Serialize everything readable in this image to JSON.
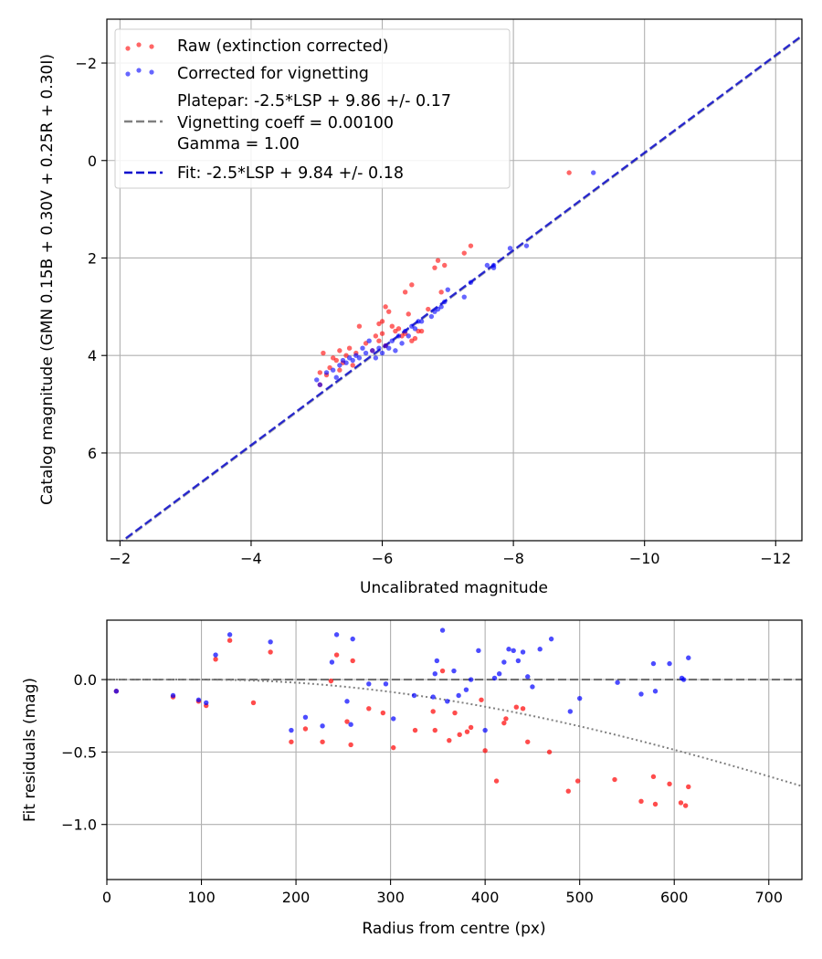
{
  "chart_data": [
    {
      "type": "scatter",
      "title": "",
      "xlabel": "Uncalibrated magnitude",
      "ylabel": "Catalog magnitude (GMN 0.15B + 0.30V + 0.25R + 0.30I)",
      "xlim": [
        -1.8,
        -12.4
      ],
      "ylim": [
        7.8,
        -2.9
      ],
      "grid": true,
      "legend_position": "top-left",
      "xticks": [
        -2,
        -4,
        -6,
        -8,
        -10,
        -12
      ],
      "xtick_labels": [
        "−2",
        "−4",
        "−6",
        "−8",
        "−10",
        "−12"
      ],
      "yticks": [
        -2,
        0,
        2,
        4,
        6
      ],
      "ytick_labels": [
        "−2",
        "0",
        "2",
        "4",
        "6"
      ],
      "legend": [
        "Raw (extinction corrected)",
        "Corrected for vignetting",
        [
          "Platepar: -2.5*LSP + 9.86 +/- 0.17",
          "Vignetting coeff = 0.00100",
          "Gamma = 1.00"
        ],
        "Fit: -2.5*LSP + 9.84 +/- 0.18"
      ],
      "series": [
        {
          "name": "Raw (extinction corrected)",
          "color": "#ff0000",
          "x": [
            -8.85,
            -7.35,
            -7.25,
            -6.95,
            -6.85,
            -6.8,
            -6.45,
            -6.9,
            -6.35,
            -6.05,
            -6.1,
            -6.0,
            -5.95,
            -6.15,
            -6.25,
            -6.55,
            -6.6,
            -6.3,
            -6.45,
            -5.65,
            -5.35,
            -5.5,
            -5.75,
            -5.6,
            -5.25,
            -5.1,
            -5.2,
            -5.05,
            -5.4,
            -5.9,
            -6.0,
            -6.2,
            -5.3,
            -5.45,
            -5.85,
            -6.35,
            -6.5,
            -6.05,
            -5.95,
            -5.55,
            -5.15,
            -5.05,
            -5.35,
            -6.7,
            -6.4
          ],
          "y": [
            0.25,
            1.75,
            1.9,
            2.15,
            2.05,
            2.2,
            2.55,
            2.7,
            2.7,
            3.0,
            3.1,
            3.3,
            3.35,
            3.4,
            3.45,
            3.5,
            3.5,
            3.6,
            3.7,
            3.4,
            3.9,
            3.85,
            3.75,
            3.95,
            4.05,
            3.95,
            4.25,
            4.35,
            4.15,
            3.6,
            3.55,
            3.5,
            4.1,
            4.0,
            3.9,
            3.55,
            3.65,
            3.8,
            3.7,
            4.2,
            4.4,
            4.6,
            4.3,
            3.05,
            3.15
          ]
        },
        {
          "name": "Corrected for vignetting",
          "color": "#0000ff",
          "x": [
            -9.22,
            -8.2,
            -7.95,
            -7.7,
            -7.7,
            -7.25,
            -7.0,
            -6.95,
            -6.85,
            -6.8,
            -6.6,
            -6.45,
            -6.35,
            -6.25,
            -6.15,
            -6.05,
            -5.95,
            -5.85,
            -5.75,
            -5.65,
            -5.55,
            -5.45,
            -5.35,
            -5.25,
            -5.15,
            -5.05,
            -6.5,
            -6.4,
            -6.3,
            -6.2,
            -6.0,
            -5.9,
            -5.8,
            -5.7,
            -5.6,
            -5.5,
            -5.4,
            -6.1,
            -6.55,
            -6.75,
            -7.6,
            -7.35,
            -6.9,
            -5.3,
            -5.0
          ],
          "y": [
            0.25,
            1.75,
            1.8,
            2.15,
            2.2,
            2.8,
            2.65,
            2.9,
            3.05,
            3.1,
            3.3,
            3.4,
            3.5,
            3.6,
            3.7,
            3.8,
            3.85,
            3.9,
            3.95,
            4.05,
            4.1,
            4.15,
            4.2,
            4.3,
            4.35,
            4.6,
            3.45,
            3.6,
            3.75,
            3.9,
            3.95,
            4.05,
            3.7,
            3.85,
            4.0,
            4.05,
            4.1,
            3.85,
            3.3,
            3.2,
            2.15,
            2.5,
            3.0,
            4.45,
            4.5
          ]
        }
      ],
      "lines": [
        {
          "name": "Platepar: -2.5*LSP + 9.86 +/- 0.17",
          "slope": 1.0,
          "intercept": 9.86,
          "color": "#808080",
          "style": "dashed"
        },
        {
          "name": "Fit: -2.5*LSP + 9.84 +/- 0.18",
          "slope": 1.0,
          "intercept": 9.84,
          "color": "#0000cc",
          "style": "dashed"
        }
      ]
    },
    {
      "type": "scatter",
      "title": "",
      "xlabel": "Radius from centre (px)",
      "ylabel": "Fit residuals (mag)",
      "xlim": [
        0,
        735
      ],
      "ylim": [
        -1.38,
        0.41
      ],
      "grid": true,
      "xticks": [
        0,
        100,
        200,
        300,
        400,
        500,
        600,
        700
      ],
      "xtick_labels": [
        "0",
        "100",
        "200",
        "300",
        "400",
        "500",
        "600",
        "700"
      ],
      "yticks": [
        -1.0,
        -0.5,
        0.0
      ],
      "ytick_labels": [
        "−1.0",
        "−0.5",
        "0.0"
      ],
      "series": [
        {
          "name": "Raw",
          "color": "#ff0000",
          "x": [
            10,
            70,
            97,
            105,
            115,
            130,
            155,
            173,
            195,
            210,
            228,
            243,
            254,
            258,
            237,
            277,
            292,
            303,
            326,
            345,
            347,
            355,
            362,
            368,
            373,
            381,
            385,
            396,
            400,
            412,
            420,
            422,
            433,
            440,
            445,
            468,
            488,
            498,
            537,
            565,
            578,
            580,
            595,
            607,
            612,
            615,
            260
          ],
          "y": [
            -0.08,
            -0.12,
            -0.15,
            -0.18,
            0.14,
            0.27,
            -0.16,
            0.19,
            -0.43,
            -0.34,
            -0.43,
            0.17,
            -0.29,
            -0.45,
            -0.01,
            -0.2,
            -0.23,
            -0.47,
            -0.35,
            -0.22,
            -0.35,
            0.06,
            -0.42,
            -0.23,
            -0.38,
            -0.36,
            -0.33,
            -0.14,
            -0.49,
            -0.7,
            -0.3,
            -0.27,
            -0.19,
            -0.2,
            -0.43,
            -0.5,
            -0.77,
            -0.7,
            -0.69,
            -0.84,
            -0.67,
            -0.86,
            -0.72,
            -0.85,
            -0.87,
            -0.74,
            0.13
          ]
        },
        {
          "name": "Corrected",
          "color": "#0000ff",
          "x": [
            10,
            70,
            97,
            105,
            115,
            130,
            173,
            195,
            210,
            228,
            238,
            243,
            254,
            258,
            260,
            277,
            295,
            303,
            325,
            345,
            347,
            349,
            355,
            360,
            367,
            372,
            380,
            385,
            393,
            400,
            410,
            415,
            420,
            425,
            430,
            435,
            440,
            445,
            450,
            458,
            470,
            490,
            500,
            540,
            565,
            578,
            580,
            595,
            608,
            610,
            615
          ],
          "y": [
            -0.08,
            -0.11,
            -0.14,
            -0.16,
            0.17,
            0.31,
            0.26,
            -0.35,
            -0.26,
            -0.32,
            0.12,
            0.31,
            -0.15,
            -0.31,
            0.28,
            -0.03,
            -0.03,
            -0.27,
            -0.11,
            -0.12,
            0.04,
            0.13,
            0.34,
            -0.15,
            0.06,
            -0.11,
            -0.07,
            0.0,
            0.2,
            -0.35,
            0.01,
            0.04,
            0.12,
            0.21,
            0.2,
            0.13,
            0.19,
            0.02,
            -0.05,
            0.21,
            0.28,
            -0.22,
            -0.13,
            -0.02,
            -0.1,
            0.11,
            -0.08,
            0.11,
            0.01,
            0.0,
            0.15
          ]
        }
      ],
      "lines": [
        {
          "name": "zero",
          "color": "#666666",
          "style": "dashed"
        },
        {
          "name": "vignetting model",
          "color": "#808080",
          "style": "dotted"
        }
      ]
    }
  ]
}
